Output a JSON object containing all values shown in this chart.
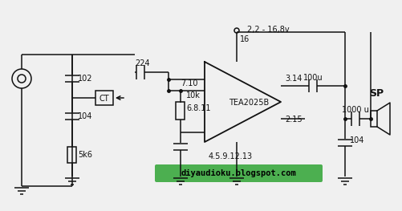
{
  "bg_color": "#f0f0f0",
  "watermark_text": "diyaudioku.blogspot.com",
  "watermark_text_color": "#000000",
  "labels": {
    "voltage": "2,2 - 16,8v",
    "cap102": "102",
    "cap104": "104",
    "res5k6": "5k6",
    "ct": "CT",
    "cap224": "224",
    "pin710": "7.10",
    "pin16": "16",
    "pin314": "3.14",
    "pin215": "2.15",
    "pin45912": "4.5.9.12.13",
    "res10k": "10k",
    "res6811": "6.8.11",
    "cap100u": "100u",
    "cap1000u": "1000 u",
    "cap104b": "104",
    "ic": "TEA2025B",
    "sp": "SP"
  },
  "colors": {
    "line": "#111111",
    "watermark_green": "#4caf50"
  }
}
